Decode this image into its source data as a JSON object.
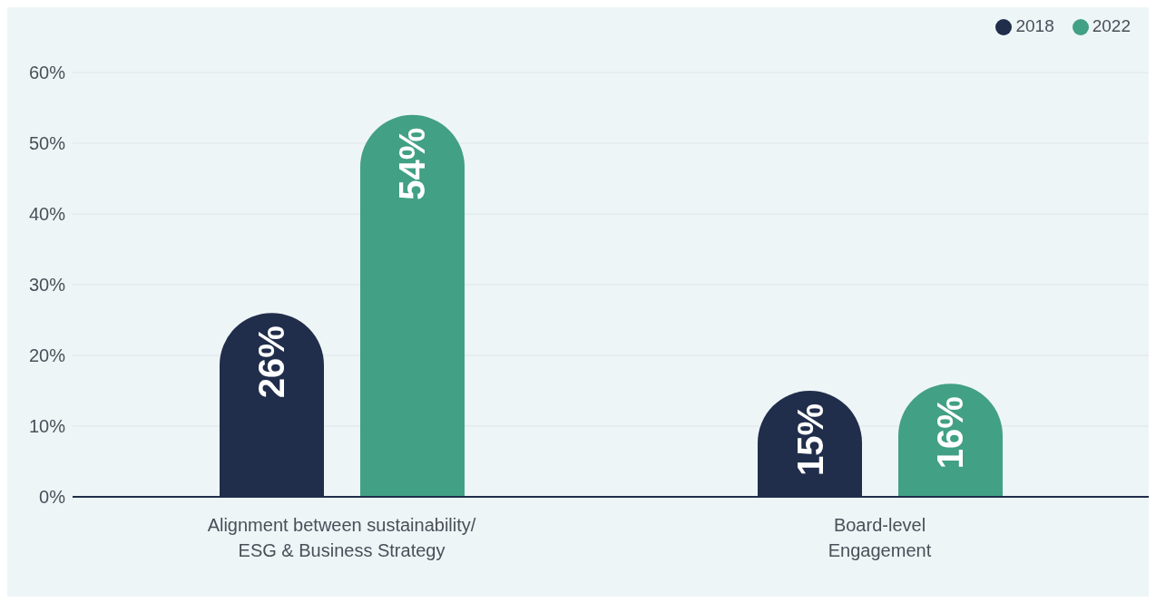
{
  "chart_data": {
    "type": "bar",
    "categories": [
      "Alignment between sustainability/\nESG & Business Strategy",
      "Board-level\nEngagement"
    ],
    "series": [
      {
        "name": "2018",
        "color": "#202d4b",
        "values": [
          26,
          15
        ],
        "value_labels": [
          "26%",
          "15%"
        ]
      },
      {
        "name": "2022",
        "color": "#42a084",
        "values": [
          54,
          16
        ],
        "value_labels": [
          "54%",
          "16%"
        ]
      }
    ],
    "ylim": [
      0,
      60
    ],
    "yticks": [
      {
        "value": 0,
        "label": "0%"
      },
      {
        "value": 10,
        "label": "10%"
      },
      {
        "value": 20,
        "label": "20%"
      },
      {
        "value": 30,
        "label": "30%"
      },
      {
        "value": 40,
        "label": "40%"
      },
      {
        "value": 50,
        "label": "50%"
      },
      {
        "value": 60,
        "label": "60%"
      }
    ],
    "grid": "y",
    "legend": "top right"
  }
}
